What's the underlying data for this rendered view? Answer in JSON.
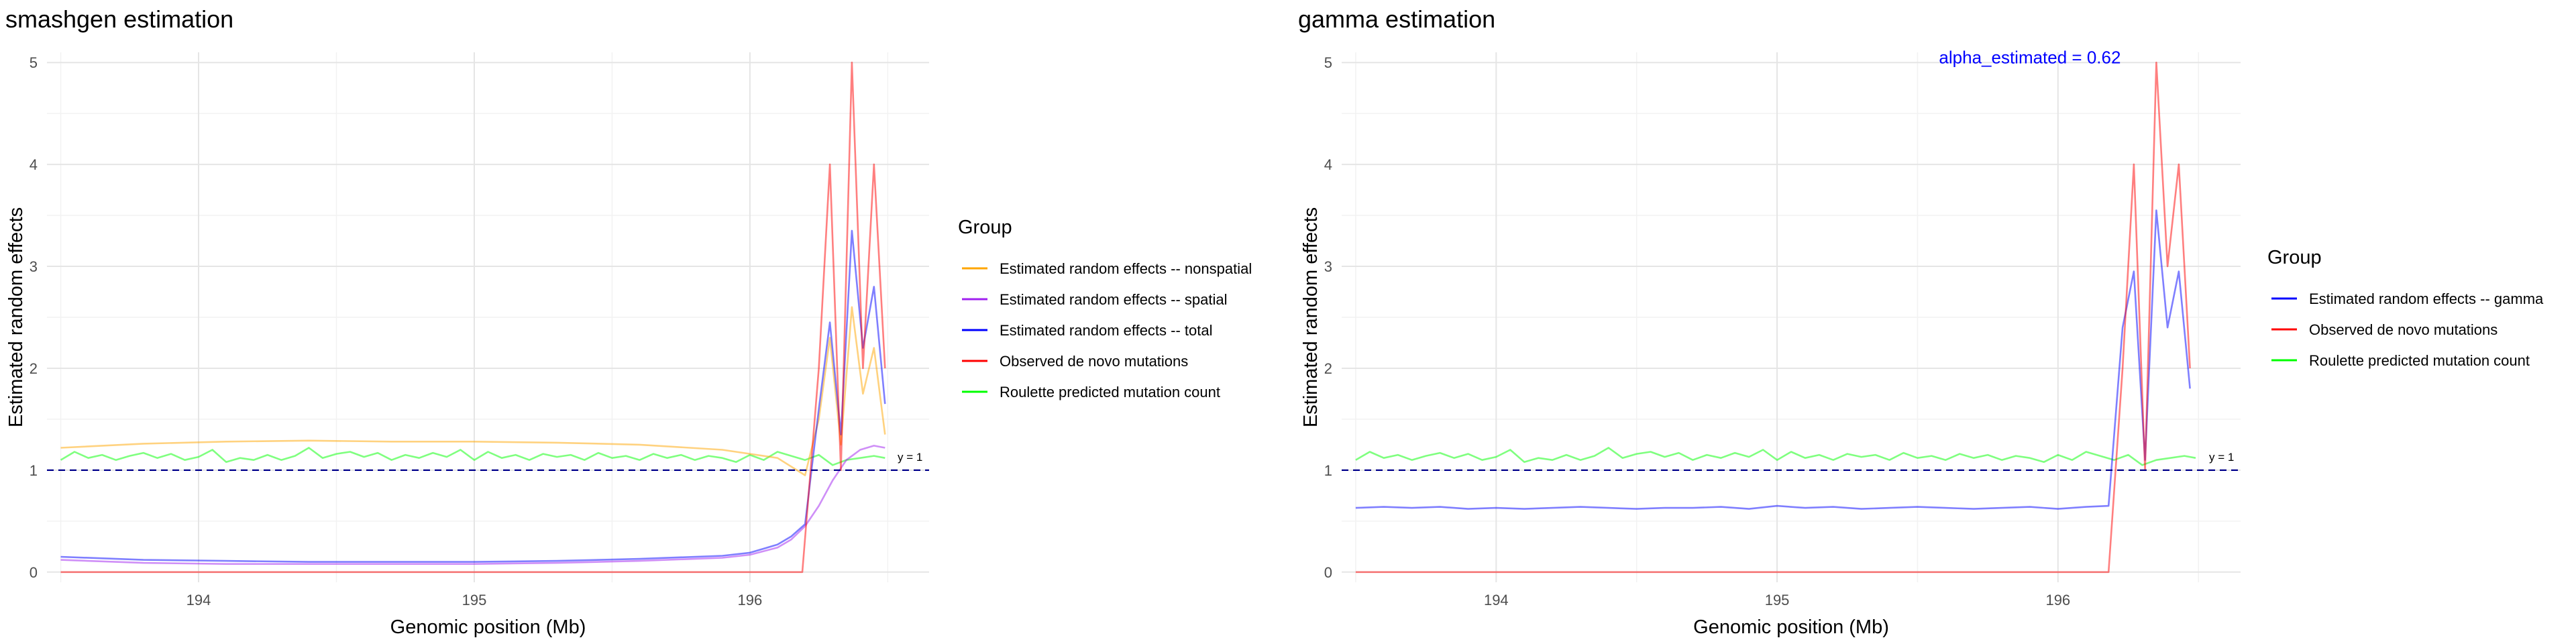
{
  "chart_data": [
    {
      "type": "line",
      "title": "smashgen estimation",
      "xlabel": "Genomic position (Mb)",
      "ylabel": "Estimated random effects",
      "xlim": [
        193.45,
        196.65
      ],
      "ylim": [
        -0.1,
        5.1
      ],
      "x_ticks": [
        194,
        195,
        196
      ],
      "y_ticks": [
        0,
        1,
        2,
        3,
        4,
        5
      ],
      "grid": true,
      "legend": {
        "title": "Group",
        "position": "right",
        "entries": [
          {
            "label": "Estimated random effects -- nonspatial",
            "color": "#FFA500"
          },
          {
            "label": "Estimated random effects -- spatial",
            "color": "#A020F0"
          },
          {
            "label": "Estimated random effects -- total",
            "color": "#0000FF"
          },
          {
            "label": "Observed de novo mutations",
            "color": "#FF0000"
          },
          {
            "label": "Roulette predicted mutation count",
            "color": "#00FF00"
          }
        ]
      },
      "hline": {
        "y": 1,
        "label": "y = 1",
        "style": "dashed",
        "color": "#00008B"
      },
      "series": [
        {
          "name": "Estimated random effects -- nonspatial",
          "color": "#FFA500",
          "x": [
            193.5,
            193.8,
            194.1,
            194.4,
            194.7,
            195.0,
            195.3,
            195.6,
            195.9,
            196.1,
            196.2,
            196.25,
            196.29,
            196.33,
            196.37,
            196.41,
            196.45,
            196.49
          ],
          "y": [
            1.22,
            1.26,
            1.28,
            1.29,
            1.28,
            1.28,
            1.27,
            1.25,
            1.2,
            1.12,
            0.95,
            1.5,
            2.3,
            1.25,
            2.6,
            1.75,
            2.2,
            1.35
          ]
        },
        {
          "name": "Estimated random effects -- spatial",
          "color": "#A020F0",
          "x": [
            193.5,
            193.8,
            194.1,
            194.4,
            194.7,
            195.0,
            195.3,
            195.6,
            195.9,
            196.0,
            196.1,
            196.15,
            196.2,
            196.25,
            196.3,
            196.35,
            196.4,
            196.45,
            196.49
          ],
          "y": [
            0.12,
            0.09,
            0.08,
            0.08,
            0.08,
            0.08,
            0.09,
            0.11,
            0.14,
            0.17,
            0.24,
            0.32,
            0.45,
            0.65,
            0.9,
            1.1,
            1.2,
            1.24,
            1.22
          ]
        },
        {
          "name": "Estimated random effects -- total",
          "color": "#0000FF",
          "x": [
            193.5,
            193.8,
            194.1,
            194.4,
            194.7,
            195.0,
            195.3,
            195.6,
            195.9,
            196.0,
            196.1,
            196.15,
            196.2,
            196.25,
            196.29,
            196.33,
            196.37,
            196.41,
            196.45,
            196.49
          ],
          "y": [
            0.15,
            0.12,
            0.11,
            0.1,
            0.1,
            0.1,
            0.11,
            0.13,
            0.16,
            0.19,
            0.27,
            0.35,
            0.47,
            1.6,
            2.45,
            1.35,
            3.35,
            2.2,
            2.8,
            1.65
          ]
        },
        {
          "name": "Observed de novo mutations",
          "color": "#FF0000",
          "x": [
            193.5,
            193.8,
            194.1,
            194.4,
            194.7,
            195.0,
            195.3,
            195.6,
            195.9,
            196.1,
            196.19,
            196.25,
            196.29,
            196.33,
            196.37,
            196.41,
            196.45,
            196.49
          ],
          "y": [
            0,
            0,
            0,
            0,
            0,
            0,
            0,
            0,
            0,
            0,
            0,
            2,
            4,
            1,
            5,
            2,
            4,
            2
          ]
        },
        {
          "name": "Roulette predicted mutation count",
          "color": "#00FF00",
          "x": [
            193.5,
            193.55,
            193.6,
            193.65,
            193.7,
            193.75,
            193.8,
            193.85,
            193.9,
            193.95,
            194.0,
            194.05,
            194.1,
            194.15,
            194.2,
            194.25,
            194.3,
            194.35,
            194.4,
            194.45,
            194.5,
            194.55,
            194.6,
            194.65,
            194.7,
            194.75,
            194.8,
            194.85,
            194.9,
            194.95,
            195.0,
            195.05,
            195.1,
            195.15,
            195.2,
            195.25,
            195.3,
            195.35,
            195.4,
            195.45,
            195.5,
            195.55,
            195.6,
            195.65,
            195.7,
            195.75,
            195.8,
            195.85,
            195.9,
            195.95,
            196.0,
            196.05,
            196.1,
            196.15,
            196.2,
            196.25,
            196.3,
            196.35,
            196.4,
            196.45,
            196.49
          ],
          "y": [
            1.1,
            1.18,
            1.12,
            1.15,
            1.1,
            1.14,
            1.17,
            1.12,
            1.16,
            1.1,
            1.13,
            1.2,
            1.08,
            1.12,
            1.1,
            1.15,
            1.1,
            1.14,
            1.22,
            1.12,
            1.16,
            1.18,
            1.13,
            1.17,
            1.1,
            1.15,
            1.12,
            1.17,
            1.13,
            1.2,
            1.1,
            1.18,
            1.12,
            1.15,
            1.1,
            1.16,
            1.13,
            1.15,
            1.1,
            1.17,
            1.12,
            1.14,
            1.1,
            1.16,
            1.12,
            1.15,
            1.1,
            1.14,
            1.12,
            1.08,
            1.15,
            1.1,
            1.18,
            1.14,
            1.1,
            1.15,
            1.05,
            1.1,
            1.12,
            1.14,
            1.12
          ]
        }
      ]
    },
    {
      "type": "line",
      "title": "gamma estimation",
      "xlabel": "Genomic position (Mb)",
      "ylabel": "Estimated random effects",
      "xlim": [
        193.45,
        196.65
      ],
      "ylim": [
        -0.1,
        5.1
      ],
      "x_ticks": [
        194,
        195,
        196
      ],
      "y_ticks": [
        0,
        1,
        2,
        3,
        4,
        5
      ],
      "grid": true,
      "annotation": {
        "text": "alpha_estimated = 0.62",
        "x": 195.9,
        "y": 5.05,
        "color": "#0000FF"
      },
      "legend": {
        "title": "Group",
        "position": "right",
        "entries": [
          {
            "label": "Estimated random effects -- gamma",
            "color": "#0000FF"
          },
          {
            "label": "Observed de novo mutations",
            "color": "#FF0000"
          },
          {
            "label": "Roulette predicted mutation count",
            "color": "#00FF00"
          }
        ]
      },
      "hline": {
        "y": 1,
        "label": "y = 1",
        "style": "dashed",
        "color": "#00008B"
      },
      "series": [
        {
          "name": "Estimated random effects -- gamma",
          "color": "#0000FF",
          "x": [
            193.5,
            193.6,
            193.7,
            193.8,
            193.9,
            194.0,
            194.1,
            194.2,
            194.3,
            194.4,
            194.5,
            194.6,
            194.7,
            194.8,
            194.9,
            195.0,
            195.1,
            195.2,
            195.3,
            195.4,
            195.5,
            195.6,
            195.7,
            195.8,
            195.9,
            196.0,
            196.1,
            196.18,
            196.23,
            196.27,
            196.31,
            196.35,
            196.39,
            196.43,
            196.47
          ],
          "y": [
            0.63,
            0.64,
            0.63,
            0.64,
            0.62,
            0.63,
            0.62,
            0.63,
            0.64,
            0.63,
            0.62,
            0.63,
            0.63,
            0.64,
            0.62,
            0.65,
            0.63,
            0.64,
            0.62,
            0.63,
            0.64,
            0.63,
            0.62,
            0.63,
            0.64,
            0.62,
            0.64,
            0.65,
            2.4,
            2.95,
            1.1,
            3.55,
            2.4,
            2.95,
            1.8
          ]
        },
        {
          "name": "Observed de novo mutations",
          "color": "#FF0000",
          "x": [
            193.5,
            193.8,
            194.1,
            194.4,
            194.7,
            195.0,
            195.3,
            195.6,
            195.9,
            196.1,
            196.18,
            196.23,
            196.27,
            196.31,
            196.35,
            196.39,
            196.43,
            196.47
          ],
          "y": [
            0,
            0,
            0,
            0,
            0,
            0,
            0,
            0,
            0,
            0,
            0,
            2,
            4,
            1,
            5,
            3,
            4,
            2
          ]
        },
        {
          "name": "Roulette predicted mutation count",
          "color": "#00FF00",
          "x": [
            193.5,
            193.55,
            193.6,
            193.65,
            193.7,
            193.75,
            193.8,
            193.85,
            193.9,
            193.95,
            194.0,
            194.05,
            194.1,
            194.15,
            194.2,
            194.25,
            194.3,
            194.35,
            194.4,
            194.45,
            194.5,
            194.55,
            194.6,
            194.65,
            194.7,
            194.75,
            194.8,
            194.85,
            194.9,
            194.95,
            195.0,
            195.05,
            195.1,
            195.15,
            195.2,
            195.25,
            195.3,
            195.35,
            195.4,
            195.45,
            195.5,
            195.55,
            195.6,
            195.65,
            195.7,
            195.75,
            195.8,
            195.85,
            195.9,
            195.95,
            196.0,
            196.05,
            196.1,
            196.15,
            196.2,
            196.25,
            196.3,
            196.35,
            196.4,
            196.45,
            196.49
          ],
          "y": [
            1.1,
            1.18,
            1.12,
            1.15,
            1.1,
            1.14,
            1.17,
            1.12,
            1.16,
            1.1,
            1.13,
            1.2,
            1.08,
            1.12,
            1.1,
            1.15,
            1.1,
            1.14,
            1.22,
            1.12,
            1.16,
            1.18,
            1.13,
            1.17,
            1.1,
            1.15,
            1.12,
            1.17,
            1.13,
            1.2,
            1.1,
            1.18,
            1.12,
            1.15,
            1.1,
            1.16,
            1.13,
            1.15,
            1.1,
            1.17,
            1.12,
            1.14,
            1.1,
            1.16,
            1.12,
            1.15,
            1.1,
            1.14,
            1.12,
            1.08,
            1.15,
            1.1,
            1.18,
            1.14,
            1.1,
            1.15,
            1.05,
            1.1,
            1.12,
            1.14,
            1.12
          ]
        }
      ]
    }
  ]
}
